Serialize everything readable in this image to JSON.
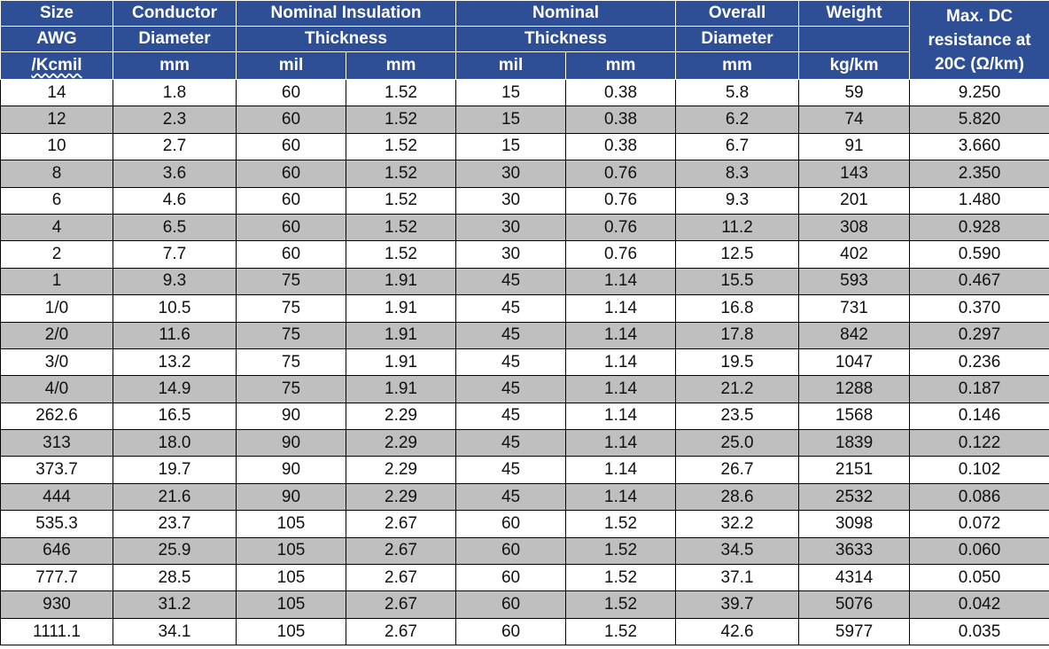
{
  "header": {
    "size_line1": "Size",
    "size_line2": "AWG",
    "size_line3": "/Kcmil",
    "conductor_line1": "Conductor",
    "conductor_line2": "Diameter",
    "nominal_insulation_line1": "Nominal Insulation",
    "nominal_insulation_line2": "Thickness",
    "nominal_line1": "Nominal",
    "nominal_line2": "Thickness",
    "overall_line1": "Overall",
    "overall_line2": "Diameter",
    "weight": "Weight",
    "resistance_line1": "Max. DC",
    "resistance_line2": "resistance at",
    "resistance_line3": "20C (Ω/km)",
    "units": [
      "mm",
      "mil",
      "mm",
      "mil",
      "mm",
      "mm",
      "kg/km"
    ]
  },
  "rows": [
    [
      "14",
      "1.8",
      "60",
      "1.52",
      "15",
      "0.38",
      "5.8",
      "59",
      "9.250"
    ],
    [
      "12",
      "2.3",
      "60",
      "1.52",
      "15",
      "0.38",
      "6.2",
      "74",
      "5.820"
    ],
    [
      "10",
      "2.7",
      "60",
      "1.52",
      "15",
      "0.38",
      "6.7",
      "91",
      "3.660"
    ],
    [
      "8",
      "3.6",
      "60",
      "1.52",
      "30",
      "0.76",
      "8.3",
      "143",
      "2.350"
    ],
    [
      "6",
      "4.6",
      "60",
      "1.52",
      "30",
      "0.76",
      "9.3",
      "201",
      "1.480"
    ],
    [
      "4",
      "6.5",
      "60",
      "1.52",
      "30",
      "0.76",
      "11.2",
      "308",
      "0.928"
    ],
    [
      "2",
      "7.7",
      "60",
      "1.52",
      "30",
      "0.76",
      "12.5",
      "402",
      "0.590"
    ],
    [
      "1",
      "9.3",
      "75",
      "1.91",
      "45",
      "1.14",
      "15.5",
      "593",
      "0.467"
    ],
    [
      "1/0",
      "10.5",
      "75",
      "1.91",
      "45",
      "1.14",
      "16.8",
      "731",
      "0.370"
    ],
    [
      "2/0",
      "11.6",
      "75",
      "1.91",
      "45",
      "1.14",
      "17.8",
      "842",
      "0.297"
    ],
    [
      "3/0",
      "13.2",
      "75",
      "1.91",
      "45",
      "1.14",
      "19.5",
      "1047",
      "0.236"
    ],
    [
      "4/0",
      "14.9",
      "75",
      "1.91",
      "45",
      "1.14",
      "21.2",
      "1288",
      "0.187"
    ],
    [
      "262.6",
      "16.5",
      "90",
      "2.29",
      "45",
      "1.14",
      "23.5",
      "1568",
      "0.146"
    ],
    [
      "313",
      "18.0",
      "90",
      "2.29",
      "45",
      "1.14",
      "25.0",
      "1839",
      "0.122"
    ],
    [
      "373.7",
      "19.7",
      "90",
      "2.29",
      "45",
      "1.14",
      "26.7",
      "2151",
      "0.102"
    ],
    [
      "444",
      "21.6",
      "90",
      "2.29",
      "45",
      "1.14",
      "28.6",
      "2532",
      "0.086"
    ],
    [
      "535.3",
      "23.7",
      "105",
      "2.67",
      "60",
      "1.52",
      "32.2",
      "3098",
      "0.072"
    ],
    [
      "646",
      "25.9",
      "105",
      "2.67",
      "60",
      "1.52",
      "34.5",
      "3633",
      "0.060"
    ],
    [
      "777.7",
      "28.5",
      "105",
      "2.67",
      "60",
      "1.52",
      "37.1",
      "4314",
      "0.050"
    ],
    [
      "930",
      "31.2",
      "105",
      "2.67",
      "60",
      "1.52",
      "39.7",
      "5076",
      "0.042"
    ],
    [
      "1111.1",
      "34.1",
      "105",
      "2.67",
      "60",
      "1.52",
      "42.6",
      "5977",
      "0.035"
    ]
  ],
  "colors": {
    "header_bg": "#2e4f95",
    "header_text": "#ffffff",
    "stripe": "#bfbfbf"
  }
}
